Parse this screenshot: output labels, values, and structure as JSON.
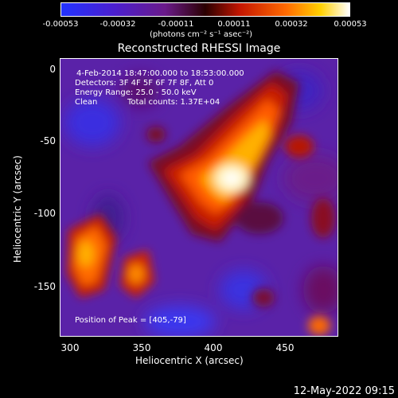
{
  "colorbar": {
    "tick_labels": [
      "-0.00053",
      "-0.00032",
      "-0.00011",
      "0.00011",
      "0.00032",
      "0.00053"
    ],
    "units": "(photons cm⁻² s⁻¹ asec⁻²)"
  },
  "title": "Reconstructed RHESSI Image",
  "annotations": {
    "time": "4-Feb-2014 18:47:00.000 to 18:53:00.000",
    "detectors": "Detectors: 3F 4F 5F 6F 7F 8F, Att 0",
    "energy": "Energy Range: 25.0 - 50.0 keV",
    "clean": "Clean",
    "counts": "Total counts: 1.37E+04",
    "peak": "Position of Peak = [405,-79]"
  },
  "axes": {
    "xlabel": "Heliocentric X (arcsec)",
    "ylabel": "Heliocentric Y (arcsec)",
    "xticks": [
      "300",
      "350",
      "400",
      "450"
    ],
    "yticks": [
      "0",
      "-50",
      "-100",
      "-150"
    ]
  },
  "timestamp": "12-May-2022 09:15",
  "colors": {
    "background": "#000000",
    "low": "#3a2de0",
    "mid_dark": "#5a1c9a",
    "mid": "#d01a00",
    "high": "#ffb000",
    "peak": "#ffffff"
  }
}
